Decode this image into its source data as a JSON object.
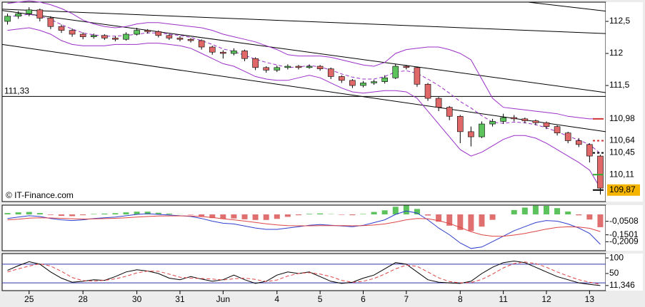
{
  "chart_data": [
    {
      "type": "candlestick",
      "source": "© IT-Finance.com",
      "categories": [
        null,
        null,
        "25",
        null,
        null,
        null,
        null,
        "28",
        null,
        null,
        null,
        null,
        "30",
        null,
        null,
        null,
        "31",
        null,
        null,
        null,
        "Jun",
        null,
        null,
        null,
        null,
        "4",
        null,
        null,
        null,
        "5",
        null,
        null,
        null,
        "6",
        null,
        null,
        null,
        "7",
        null,
        null,
        null,
        null,
        "8",
        null,
        null,
        null,
        "11",
        null,
        null,
        null,
        "12",
        null,
        null,
        null,
        "13",
        null
      ],
      "open": [
        112.5,
        112.58,
        112.62,
        112.68,
        112.55,
        112.42,
        112.36,
        112.3,
        112.26,
        112.28,
        112.24,
        112.22,
        112.3,
        112.36,
        112.34,
        112.28,
        112.24,
        112.22,
        112.2,
        112.1,
        112.02,
        112.0,
        112.04,
        111.92,
        111.78,
        111.74,
        111.78,
        111.8,
        111.78,
        111.8,
        111.76,
        111.64,
        111.58,
        111.5,
        111.54,
        111.56,
        111.62,
        111.8,
        111.78,
        111.52,
        111.3,
        111.16,
        111.02,
        110.78,
        110.7,
        110.9,
        110.94,
        111.0,
        110.98,
        110.95,
        110.92,
        110.86,
        110.76,
        110.64,
        110.58,
        110.4
      ],
      "high": [
        112.62,
        112.66,
        112.72,
        112.7,
        112.58,
        112.45,
        112.39,
        112.33,
        112.31,
        112.3,
        112.27,
        112.33,
        112.4,
        112.38,
        112.36,
        112.3,
        112.27,
        112.24,
        112.22,
        112.12,
        112.05,
        112.08,
        112.06,
        111.94,
        111.8,
        111.81,
        111.83,
        111.82,
        111.83,
        111.82,
        111.78,
        111.66,
        111.6,
        111.57,
        111.59,
        111.66,
        111.84,
        111.82,
        111.79,
        111.54,
        111.32,
        111.18,
        111.04,
        110.86,
        110.94,
        110.98,
        111.06,
        111.04,
        111.0,
        110.97,
        110.94,
        110.88,
        110.78,
        110.68,
        110.6,
        110.42
      ],
      "low": [
        112.45,
        112.54,
        112.58,
        112.5,
        112.38,
        112.32,
        112.26,
        112.22,
        112.23,
        112.21,
        112.19,
        112.2,
        112.28,
        112.31,
        112.25,
        112.21,
        112.19,
        112.17,
        112.06,
        111.98,
        111.92,
        111.97,
        111.88,
        111.74,
        111.7,
        111.71,
        111.75,
        111.75,
        111.76,
        111.73,
        111.6,
        111.54,
        111.46,
        111.47,
        111.51,
        111.53,
        111.6,
        111.75,
        111.48,
        111.26,
        111.1,
        110.96,
        110.6,
        110.55,
        110.68,
        110.86,
        110.9,
        110.94,
        110.91,
        110.88,
        110.82,
        110.72,
        110.6,
        110.54,
        110.3,
        109.8
      ],
      "close": [
        112.58,
        112.62,
        112.68,
        112.55,
        112.42,
        112.36,
        112.3,
        112.26,
        112.28,
        112.24,
        112.22,
        112.3,
        112.36,
        112.34,
        112.28,
        112.24,
        112.22,
        112.2,
        112.1,
        112.02,
        112.0,
        112.04,
        111.92,
        111.78,
        111.74,
        111.78,
        111.8,
        111.78,
        111.8,
        111.76,
        111.64,
        111.58,
        111.5,
        111.54,
        111.56,
        111.62,
        111.8,
        111.78,
        111.52,
        111.3,
        111.16,
        111.02,
        110.78,
        110.7,
        110.9,
        110.94,
        111.0,
        110.98,
        110.95,
        110.92,
        110.86,
        110.76,
        110.64,
        110.58,
        110.4,
        109.9
      ],
      "up_color": "#5cc25c",
      "down_color": "#e06868",
      "bands": {
        "color": "#9b30c8",
        "upper": [
          112.78,
          112.8,
          112.82,
          112.8,
          112.76,
          112.7,
          112.62,
          112.52,
          112.46,
          112.42,
          112.4,
          112.42,
          112.46,
          112.48,
          112.48,
          112.46,
          112.44,
          112.42,
          112.4,
          112.36,
          112.3,
          112.26,
          112.22,
          112.18,
          112.12,
          112.06,
          111.98,
          111.96,
          111.96,
          111.96,
          111.94,
          111.9,
          111.86,
          111.82,
          111.8,
          111.86,
          112.0,
          112.06,
          112.08,
          112.1,
          112.1,
          112.06,
          112.0,
          111.9,
          111.6,
          111.3,
          111.16,
          111.14,
          111.12,
          111.1,
          111.08,
          111.06,
          111.02,
          111.0,
          110.98,
          110.98
        ],
        "middle": [
          112.57,
          112.59,
          112.61,
          112.58,
          112.53,
          112.45,
          112.38,
          112.32,
          112.29,
          112.27,
          112.27,
          112.28,
          112.3,
          112.32,
          112.32,
          112.3,
          112.28,
          112.25,
          112.2,
          112.14,
          112.07,
          112.03,
          111.97,
          111.91,
          111.86,
          111.82,
          111.78,
          111.79,
          111.81,
          111.79,
          111.74,
          111.68,
          111.63,
          111.6,
          111.6,
          111.64,
          111.71,
          111.73,
          111.69,
          111.6,
          111.5,
          111.38,
          111.25,
          111.15,
          111.03,
          110.93,
          110.91,
          110.93,
          110.92,
          110.89,
          110.84,
          110.78,
          110.71,
          110.65,
          110.58,
          110.44
        ],
        "lower": [
          112.36,
          112.38,
          112.4,
          112.36,
          112.3,
          112.2,
          112.14,
          112.12,
          112.12,
          112.12,
          112.14,
          112.14,
          112.14,
          112.16,
          112.16,
          112.14,
          112.12,
          112.08,
          112.0,
          111.92,
          111.84,
          111.8,
          111.72,
          111.64,
          111.6,
          111.58,
          111.58,
          111.62,
          111.66,
          111.62,
          111.54,
          111.46,
          111.4,
          111.38,
          111.4,
          111.42,
          111.42,
          111.4,
          111.3,
          111.1,
          110.9,
          110.7,
          110.5,
          110.4,
          110.46,
          110.56,
          110.66,
          110.72,
          110.72,
          110.68,
          110.6,
          110.5,
          110.4,
          110.3,
          110.18,
          109.9
        ]
      },
      "ylim": [
        109.69,
        112.8
      ],
      "yticks": [
        {
          "value": 112.5,
          "label": "112,5"
        },
        112,
        {
          "value": 111.5,
          "label": "111,5"
        }
      ],
      "hline": {
        "value": 111.33,
        "label": "111,33"
      },
      "trendlines": [
        {
          "x": [
            -0.5,
            55.5
          ],
          "y": [
            112.69,
            112.31
          ]
        },
        {
          "x": [
            48.3,
            55.5
          ],
          "y": [
            112.8,
            112.66
          ]
        },
        {
          "x": [
            -0.5,
            55.5
          ],
          "y": [
            112.67,
            111.39
          ]
        },
        {
          "x": [
            -0.5,
            55.5
          ],
          "y": [
            112.14,
            110.78
          ]
        }
      ],
      "levels": [
        {
          "value": 110.98,
          "label": "110,98",
          "color": "#cc3333"
        },
        {
          "value": 110.64,
          "label": "110,64",
          "color": "#cc3333",
          "dash": true
        },
        {
          "value": 110.45,
          "label": "110,45",
          "color": "#000000",
          "dash": true
        },
        {
          "value": 110.11,
          "label": "110,11",
          "color": "#33aa33"
        },
        {
          "value": 109.87,
          "label": "109,87",
          "color": "#000000",
          "background": "#f5b400"
        }
      ]
    },
    {
      "type": "macd",
      "histogram": [
        0.01,
        0.015,
        0.018,
        0.01,
        -0.004,
        -0.011,
        -0.013,
        -0.006,
        0.003,
        0.006,
        0.009,
        0.015,
        0.02,
        0.02,
        0.012,
        0.006,
        0.001,
        -0.003,
        -0.014,
        -0.027,
        -0.033,
        -0.03,
        -0.036,
        -0.041,
        -0.041,
        -0.033,
        -0.018,
        -0.006,
        0.004,
        0.007,
        0.002,
        -0.003,
        -0.006,
        0.003,
        0.018,
        0.03,
        0.056,
        0.065,
        0.04,
        -0.008,
        -0.054,
        -0.083,
        -0.114,
        -0.123,
        -0.09,
        -0.04,
        0.0,
        0.032,
        0.05,
        0.064,
        0.063,
        0.046,
        0.021,
        -0.007,
        -0.038,
        -0.094
      ],
      "pos_color": "#5cc25c",
      "neg_color": "#e07070",
      "series": [
        {
          "color": "#2f3fcc",
          "values": [
            -0.03,
            -0.02,
            -0.01,
            -0.015,
            -0.03,
            -0.04,
            -0.045,
            -0.04,
            -0.03,
            -0.025,
            -0.02,
            -0.01,
            0.0,
            0.005,
            0.0,
            -0.005,
            -0.01,
            -0.015,
            -0.03,
            -0.05,
            -0.065,
            -0.07,
            -0.085,
            -0.1,
            -0.11,
            -0.11,
            -0.1,
            -0.09,
            -0.08,
            -0.075,
            -0.08,
            -0.085,
            -0.09,
            -0.08,
            -0.06,
            -0.04,
            0.0,
            0.025,
            0.01,
            -0.04,
            -0.1,
            -0.15,
            -0.21,
            -0.25,
            -0.24,
            -0.2,
            -0.16,
            -0.12,
            -0.09,
            -0.06,
            -0.045,
            -0.05,
            -0.07,
            -0.1,
            -0.14,
            -0.22
          ]
        },
        {
          "color": "#dd4444",
          "values": [
            -0.04,
            -0.035,
            -0.028,
            -0.025,
            -0.026,
            -0.029,
            -0.032,
            -0.034,
            -0.033,
            -0.031,
            -0.029,
            -0.025,
            -0.02,
            -0.015,
            -0.012,
            -0.011,
            -0.011,
            -0.012,
            -0.016,
            -0.023,
            -0.032,
            -0.04,
            -0.049,
            -0.059,
            -0.069,
            -0.077,
            -0.082,
            -0.084,
            -0.084,
            -0.082,
            -0.082,
            -0.082,
            -0.084,
            -0.083,
            -0.078,
            -0.07,
            -0.056,
            -0.04,
            -0.03,
            -0.032,
            -0.046,
            -0.067,
            -0.096,
            -0.127,
            -0.15,
            -0.16,
            -0.16,
            -0.152,
            -0.14,
            -0.124,
            -0.108,
            -0.096,
            -0.091,
            -0.093,
            -0.102,
            -0.126
          ]
        }
      ],
      "ylim": [
        -0.267,
        0.068
      ],
      "yticks": [
        {
          "value": -0.0508,
          "label": "-0,0508"
        },
        {
          "value": -0.1501,
          "label": "-0,1501"
        },
        {
          "value": -0.2009,
          "label": "-0,2009"
        }
      ]
    },
    {
      "type": "line",
      "series": [
        {
          "color": "#000000",
          "values": [
            60,
            75,
            88,
            80,
            55,
            35,
            22,
            25,
            30,
            28,
            40,
            55,
            62,
            58,
            50,
            35,
            30,
            40,
            32,
            25,
            30,
            45,
            30,
            18,
            25,
            45,
            55,
            50,
            55,
            40,
            25,
            18,
            22,
            35,
            45,
            65,
            85,
            80,
            55,
            30,
            22,
            20,
            18,
            25,
            50,
            70,
            85,
            90,
            85,
            70,
            55,
            40,
            30,
            20,
            15,
            11.346
          ]
        },
        {
          "color": "#dd4444",
          "dash": true,
          "values": [
            55,
            65,
            74,
            81,
            74,
            57,
            37,
            27,
            26,
            28,
            33,
            41,
            52,
            58,
            57,
            48,
            38,
            35,
            34,
            32,
            29,
            33,
            35,
            31,
            24,
            29,
            42,
            50,
            53,
            48,
            40,
            28,
            22,
            25,
            34,
            48,
            65,
            77,
            73,
            55,
            36,
            24,
            20,
            21,
            31,
            48,
            68,
            82,
            87,
            82,
            70,
            55,
            42,
            30,
            22,
            15
          ]
        }
      ],
      "levels": [
        80,
        20
      ],
      "level_color": "#3333aa",
      "ylim": [
        -5,
        114
      ],
      "yticks": [
        100,
        50,
        {
          "value": 11.346,
          "label": "11,346"
        }
      ]
    }
  ]
}
